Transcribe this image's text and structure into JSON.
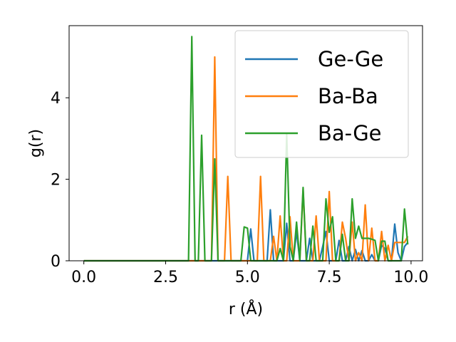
{
  "chart_data": {
    "type": "line",
    "xlabel": "r (Å)",
    "ylabel": "g(r)",
    "xlim": [
      -0.45,
      10.35
    ],
    "ylim": [
      0,
      5.77
    ],
    "xticks": [
      0.0,
      2.5,
      5.0,
      7.5,
      10.0
    ],
    "xtick_labels": [
      "0.0",
      "2.5",
      "5.0",
      "7.5",
      "10.0"
    ],
    "yticks": [
      0,
      2,
      4
    ],
    "ytick_labels": [
      "0",
      "2",
      "4"
    ],
    "grid": false,
    "legend_position": "upper right",
    "series": [
      {
        "name": "Ge-Ge",
        "color": "#1f77b4",
        "x": [
          0,
          4.9,
          5.0,
          5.1,
          5.2,
          5.3,
          5.4,
          5.5,
          5.6,
          5.7,
          5.8,
          5.9,
          6.0,
          6.1,
          6.2,
          6.3,
          6.4,
          6.5,
          6.6,
          6.7,
          6.8,
          6.9,
          7.0,
          7.1,
          7.2,
          7.3,
          7.4,
          7.5,
          7.6,
          7.7,
          7.8,
          7.9,
          8.0,
          8.1,
          8.2,
          8.3,
          8.4,
          8.5,
          8.6,
          8.7,
          8.8,
          8.9,
          9.0,
          9.1,
          9.2,
          9.3,
          9.4,
          9.5,
          9.6,
          9.7,
          9.8,
          9.9
        ],
        "values": [
          0,
          0,
          0,
          0.78,
          0,
          0,
          0,
          0,
          0,
          1.25,
          0,
          0,
          0,
          0,
          0.92,
          0,
          0,
          0.72,
          0,
          0,
          0,
          0.55,
          0,
          0,
          0,
          0.35,
          0.72,
          0,
          0,
          0,
          0.5,
          0,
          0,
          0.35,
          0,
          0.28,
          0,
          0.25,
          0,
          0,
          0.15,
          0,
          0,
          0.38,
          0.3,
          0,
          0,
          0.9,
          0.2,
          0,
          0.35,
          0.45
        ]
      },
      {
        "name": "Ba-Ba",
        "color": "#ff7f0e",
        "x": [
          0,
          3.7,
          3.8,
          3.9,
          4.0,
          4.1,
          4.2,
          4.3,
          4.4,
          4.5,
          4.6,
          5.2,
          5.3,
          5.4,
          5.5,
          5.6,
          5.7,
          5.8,
          5.9,
          6.0,
          6.1,
          6.2,
          6.3,
          6.4,
          6.5,
          6.6,
          6.7,
          6.8,
          6.9,
          7.0,
          7.1,
          7.2,
          7.3,
          7.4,
          7.5,
          7.6,
          7.7,
          7.8,
          7.9,
          8.0,
          8.1,
          8.2,
          8.3,
          8.4,
          8.5,
          8.6,
          8.7,
          8.8,
          8.9,
          9.0,
          9.1,
          9.2,
          9.3,
          9.4,
          9.5,
          9.6,
          9.7,
          9.8,
          9.9
        ],
        "values": [
          0,
          0,
          0,
          0,
          5.0,
          0,
          0,
          0,
          2.07,
          0,
          0,
          0,
          0,
          2.07,
          0,
          0,
          0,
          0.6,
          0,
          1.1,
          0,
          0,
          1.08,
          0,
          0,
          0,
          1.75,
          0,
          0,
          0,
          1.1,
          0,
          0,
          0,
          1.7,
          0,
          0,
          0,
          0.95,
          0.55,
          0,
          0.95,
          0,
          0.2,
          0,
          1.37,
          0,
          0.8,
          0,
          0,
          0.72,
          0,
          0.38,
          0,
          0.45,
          0.45,
          0.45,
          0.45,
          0.6
        ]
      },
      {
        "name": "Ba-Ge",
        "color": "#2ca02c",
        "x": [
          0,
          3.2,
          3.3,
          3.4,
          3.5,
          3.6,
          3.7,
          3.8,
          3.9,
          4.0,
          4.1,
          4.8,
          4.9,
          5.0,
          5.1,
          5.2,
          5.3,
          5.4,
          5.5,
          5.6,
          5.7,
          5.8,
          5.9,
          6.0,
          6.1,
          6.2,
          6.3,
          6.4,
          6.5,
          6.6,
          6.7,
          6.8,
          6.9,
          7.0,
          7.1,
          7.2,
          7.3,
          7.4,
          7.5,
          7.6,
          7.7,
          7.8,
          7.9,
          8.0,
          8.1,
          8.2,
          8.3,
          8.4,
          8.5,
          8.6,
          8.7,
          8.8,
          8.9,
          9.0,
          9.1,
          9.2,
          9.3,
          9.4,
          9.5,
          9.6,
          9.7,
          9.8,
          9.9
        ],
        "values": [
          0,
          0,
          5.5,
          0,
          0,
          3.08,
          0,
          0,
          0,
          2.5,
          0,
          0,
          0.83,
          0.8,
          0,
          0,
          0,
          0,
          0,
          0,
          0,
          0,
          0,
          0.3,
          0,
          3.1,
          0.35,
          0,
          0.95,
          0,
          1.8,
          0,
          0,
          0.85,
          0,
          0,
          0,
          1.52,
          0.7,
          1.08,
          0,
          0,
          0.65,
          0,
          0,
          1.52,
          0.55,
          0.85,
          0.55,
          0.55,
          0.55,
          0.53,
          0.5,
          0,
          0.48,
          0.48,
          0,
          0,
          0,
          0,
          0,
          1.27,
          0.4
        ]
      }
    ]
  }
}
